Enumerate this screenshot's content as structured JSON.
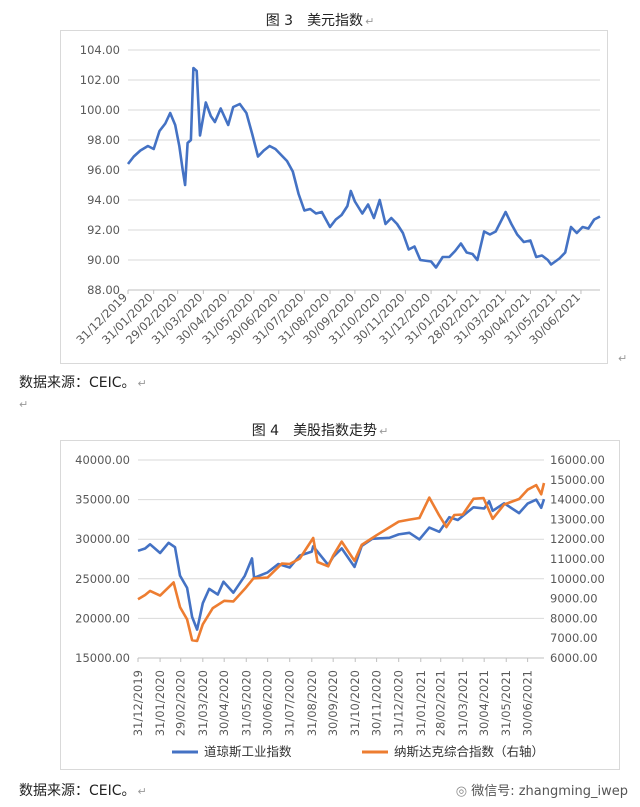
{
  "chart1": {
    "caption_number": "图 3",
    "caption_title": "美元指数",
    "source": "数据来源：CEIC。"
  },
  "chart2": {
    "caption_number": "图 4",
    "caption_title": "美股指数走势",
    "source": "数据来源：CEIC。"
  },
  "watermark": "微信号: zhangming_iwep",
  "chart_data": [
    {
      "type": "line",
      "title": "美元指数",
      "ylim": [
        88,
        104
      ],
      "y_ticks": [
        "88.00",
        "90.00",
        "92.00",
        "94.00",
        "96.00",
        "98.00",
        "100.00",
        "102.00",
        "104.00"
      ],
      "x_ticks": [
        "31/12/2019",
        "31/01/2020",
        "29/02/2020",
        "31/03/2020",
        "30/04/2020",
        "31/05/2020",
        "30/06/2020",
        "31/07/2020",
        "31/08/2020",
        "30/09/2020",
        "31/10/2020",
        "30/11/2020",
        "31/12/2020",
        "31/01/2021",
        "28/02/2021",
        "31/03/2021",
        "30/04/2021",
        "31/05/2021",
        "30/06/2021"
      ],
      "x_range": [
        "2019-12-31",
        "2021-07-23"
      ],
      "grid": "horizontal",
      "color": "#4472C4",
      "series": [
        {
          "points": [
            [
              "2019-12-31",
              96.4
            ],
            [
              "2020-01-07",
              96.9
            ],
            [
              "2020-01-15",
              97.3
            ],
            [
              "2020-01-24",
              97.6
            ],
            [
              "2020-01-31",
              97.4
            ],
            [
              "2020-02-07",
              98.6
            ],
            [
              "2020-02-14",
              99.1
            ],
            [
              "2020-02-20",
              99.8
            ],
            [
              "2020-02-26",
              99.0
            ],
            [
              "2020-03-02",
              97.6
            ],
            [
              "2020-03-06",
              96.0
            ],
            [
              "2020-03-09",
              95.0
            ],
            [
              "2020-03-12",
              97.8
            ],
            [
              "2020-03-16",
              98.0
            ],
            [
              "2020-03-19",
              102.8
            ],
            [
              "2020-03-23",
              102.6
            ],
            [
              "2020-03-27",
              98.3
            ],
            [
              "2020-04-03",
              100.5
            ],
            [
              "2020-04-09",
              99.6
            ],
            [
              "2020-04-14",
              99.2
            ],
            [
              "2020-04-21",
              100.1
            ],
            [
              "2020-04-30",
              99.0
            ],
            [
              "2020-05-06",
              100.2
            ],
            [
              "2020-05-14",
              100.4
            ],
            [
              "2020-05-22",
              99.8
            ],
            [
              "2020-05-29",
              98.4
            ],
            [
              "2020-06-05",
              96.9
            ],
            [
              "2020-06-12",
              97.3
            ],
            [
              "2020-06-19",
              97.6
            ],
            [
              "2020-06-26",
              97.4
            ],
            [
              "2020-07-03",
              97.0
            ],
            [
              "2020-07-10",
              96.6
            ],
            [
              "2020-07-17",
              95.9
            ],
            [
              "2020-07-24",
              94.4
            ],
            [
              "2020-07-31",
              93.3
            ],
            [
              "2020-08-07",
              93.4
            ],
            [
              "2020-08-14",
              93.1
            ],
            [
              "2020-08-21",
              93.2
            ],
            [
              "2020-08-31",
              92.2
            ],
            [
              "2020-09-07",
              92.7
            ],
            [
              "2020-09-14",
              93.0
            ],
            [
              "2020-09-21",
              93.6
            ],
            [
              "2020-09-25",
              94.6
            ],
            [
              "2020-09-30",
              93.9
            ],
            [
              "2020-10-09",
              93.1
            ],
            [
              "2020-10-16",
              93.7
            ],
            [
              "2020-10-23",
              92.8
            ],
            [
              "2020-10-30",
              94.0
            ],
            [
              "2020-11-06",
              92.4
            ],
            [
              "2020-11-13",
              92.8
            ],
            [
              "2020-11-20",
              92.4
            ],
            [
              "2020-11-27",
              91.8
            ],
            [
              "2020-12-04",
              90.7
            ],
            [
              "2020-12-11",
              90.9
            ],
            [
              "2020-12-18",
              90.0
            ],
            [
              "2020-12-31",
              89.9
            ],
            [
              "2021-01-06",
              89.5
            ],
            [
              "2021-01-14",
              90.2
            ],
            [
              "2021-01-22",
              90.2
            ],
            [
              "2021-01-29",
              90.6
            ],
            [
              "2021-02-05",
              91.1
            ],
            [
              "2021-02-12",
              90.5
            ],
            [
              "2021-02-19",
              90.4
            ],
            [
              "2021-02-25",
              90.0
            ],
            [
              "2021-03-05",
              91.9
            ],
            [
              "2021-03-12",
              91.7
            ],
            [
              "2021-03-19",
              91.9
            ],
            [
              "2021-03-31",
              93.2
            ],
            [
              "2021-04-07",
              92.4
            ],
            [
              "2021-04-14",
              91.7
            ],
            [
              "2021-04-22",
              91.2
            ],
            [
              "2021-04-30",
              91.3
            ],
            [
              "2021-05-07",
              90.2
            ],
            [
              "2021-05-14",
              90.3
            ],
            [
              "2021-05-21",
              90.0
            ],
            [
              "2021-05-25",
              89.7
            ],
            [
              "2021-06-04",
              90.1
            ],
            [
              "2021-06-11",
              90.5
            ],
            [
              "2021-06-18",
              92.2
            ],
            [
              "2021-06-25",
              91.8
            ],
            [
              "2021-07-02",
              92.2
            ],
            [
              "2021-07-09",
              92.1
            ],
            [
              "2021-07-16",
              92.7
            ],
            [
              "2021-07-23",
              92.9
            ]
          ]
        }
      ]
    },
    {
      "type": "line",
      "title": "美股指数走势",
      "ylim_left": [
        15000,
        40000
      ],
      "ylim_right": [
        6000,
        16000
      ],
      "y_ticks_left": [
        "15000.00",
        "20000.00",
        "25000.00",
        "30000.00",
        "35000.00",
        "40000.00"
      ],
      "y_ticks_right": [
        "6000.00",
        "7000.00",
        "8000.00",
        "9000.00",
        "10000.00",
        "11000.00",
        "12000.00",
        "13000.00",
        "14000.00",
        "15000.00",
        "16000.00"
      ],
      "x_ticks": [
        "31/12/2019",
        "31/01/2020",
        "29/02/2020",
        "31/03/2020",
        "30/04/2020",
        "31/05/2020",
        "30/06/2020",
        "31/07/2020",
        "31/08/2020",
        "30/09/2020",
        "31/10/2020",
        "30/11/2020",
        "31/12/2020",
        "31/01/2021",
        "28/02/2021",
        "31/03/2021",
        "30/04/2021",
        "31/05/2021",
        "30/06/2021"
      ],
      "x_range": [
        "2019-12-31",
        "2021-07-23"
      ],
      "grid": "horizontal",
      "legend": "bottom",
      "series": [
        {
          "name": "道琼斯工业指数",
          "axis": "left",
          "color": "#4472C4",
          "points": [
            [
              "2019-12-31",
              28540
            ],
            [
              "2020-01-10",
              28820
            ],
            [
              "2020-01-17",
              29350
            ],
            [
              "2020-01-31",
              28260
            ],
            [
              "2020-02-12",
              29550
            ],
            [
              "2020-02-21",
              28990
            ],
            [
              "2020-02-28",
              25400
            ],
            [
              "2020-03-09",
              23850
            ],
            [
              "2020-03-16",
              20190
            ],
            [
              "2020-03-23",
              18590
            ],
            [
              "2020-03-31",
              21920
            ],
            [
              "2020-04-09",
              23720
            ],
            [
              "2020-04-21",
              23020
            ],
            [
              "2020-04-29",
              24630
            ],
            [
              "2020-05-13",
              23250
            ],
            [
              "2020-05-29",
              25380
            ],
            [
              "2020-06-08",
              27570
            ],
            [
              "2020-06-11",
              25130
            ],
            [
              "2020-06-30",
              25810
            ],
            [
              "2020-07-15",
              26870
            ],
            [
              "2020-07-31",
              26430
            ],
            [
              "2020-08-14",
              27930
            ],
            [
              "2020-08-31",
              28430
            ],
            [
              "2020-09-02",
              29100
            ],
            [
              "2020-09-23",
              26760
            ],
            [
              "2020-09-30",
              27780
            ],
            [
              "2020-10-12",
              28840
            ],
            [
              "2020-10-30",
              26500
            ],
            [
              "2020-11-09",
              29160
            ],
            [
              "2020-11-24",
              30050
            ],
            [
              "2020-12-18",
              30180
            ],
            [
              "2020-12-31",
              30600
            ],
            [
              "2021-01-15",
              30810
            ],
            [
              "2021-01-29",
              29980
            ],
            [
              "2021-02-12",
              31460
            ],
            [
              "2021-02-26",
              30930
            ],
            [
              "2021-03-12",
              32780
            ],
            [
              "2021-03-24",
              32420
            ],
            [
              "2021-04-15",
              34030
            ],
            [
              "2021-04-30",
              33870
            ],
            [
              "2021-05-07",
              34780
            ],
            [
              "2021-05-12",
              33580
            ],
            [
              "2021-05-28",
              34530
            ],
            [
              "2021-06-18",
              33290
            ],
            [
              "2021-06-30",
              34500
            ],
            [
              "2021-07-12",
              34990
            ],
            [
              "2021-07-19",
              33960
            ],
            [
              "2021-07-23",
              35060
            ]
          ]
        },
        {
          "name": "纳斯达克综合指数（右轴）",
          "axis": "right",
          "color": "#ED7D31",
          "points": [
            [
              "2019-12-31",
              8970
            ],
            [
              "2020-01-10",
              9180
            ],
            [
              "2020-01-17",
              9390
            ],
            [
              "2020-01-31",
              9150
            ],
            [
              "2020-02-19",
              9820
            ],
            [
              "2020-02-28",
              8570
            ],
            [
              "2020-03-09",
              7950
            ],
            [
              "2020-03-16",
              6900
            ],
            [
              "2020-03-23",
              6860
            ],
            [
              "2020-03-31",
              7700
            ],
            [
              "2020-04-14",
              8520
            ],
            [
              "2020-04-30",
              8890
            ],
            [
              "2020-05-13",
              8860
            ],
            [
              "2020-05-29",
              9490
            ],
            [
              "2020-06-10",
              10020
            ],
            [
              "2020-06-30",
              10060
            ],
            [
              "2020-07-20",
              10770
            ],
            [
              "2020-07-31",
              10750
            ],
            [
              "2020-08-14",
              11020
            ],
            [
              "2020-09-02",
              12060
            ],
            [
              "2020-09-08",
              10850
            ],
            [
              "2020-09-23",
              10630
            ],
            [
              "2020-09-30",
              11170
            ],
            [
              "2020-10-12",
              11880
            ],
            [
              "2020-10-30",
              10910
            ],
            [
              "2020-11-09",
              11710
            ],
            [
              "2020-11-30",
              12200
            ],
            [
              "2020-12-31",
              12890
            ],
            [
              "2021-01-15",
              12990
            ],
            [
              "2021-01-29",
              13070
            ],
            [
              "2021-02-12",
              14100
            ],
            [
              "2021-02-26",
              13190
            ],
            [
              "2021-03-08",
              12610
            ],
            [
              "2021-03-19",
              13220
            ],
            [
              "2021-03-31",
              13250
            ],
            [
              "2021-04-15",
              14040
            ],
            [
              "2021-04-29",
              14080
            ],
            [
              "2021-05-12",
              13030
            ],
            [
              "2021-05-28",
              13750
            ],
            [
              "2021-06-18",
              14030
            ],
            [
              "2021-06-30",
              14500
            ],
            [
              "2021-07-12",
              14730
            ],
            [
              "2021-07-19",
              14270
            ],
            [
              "2021-07-23",
              14840
            ]
          ]
        }
      ]
    }
  ]
}
